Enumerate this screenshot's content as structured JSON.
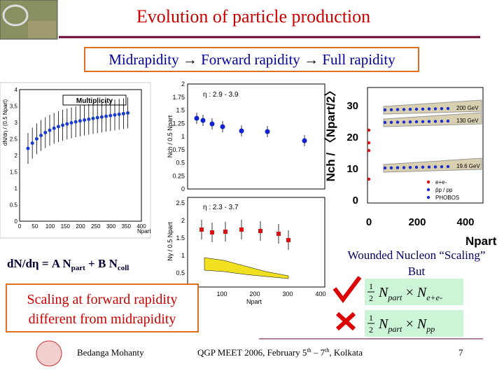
{
  "header": {
    "title": "Evolution of particle production",
    "subtitle": {
      "part1": "Midrapidity",
      "arrow1": "→",
      "part2": "Forward rapidity",
      "arrow2": "→",
      "part3": "Full rapidity"
    }
  },
  "figures": {
    "left_plot": {
      "title": "Multiplicity",
      "y_label": "dN/dη / (0.5 Npart)",
      "x_label": "Npart",
      "x_ticks": [
        "0",
        "50",
        "100",
        "150",
        "200",
        "250",
        "300",
        "350",
        "400"
      ],
      "y_ticks": [
        "0",
        "0.5",
        "1",
        "1.5",
        "2",
        "2.5",
        "3",
        "3.5",
        "4"
      ]
    },
    "middle_plot": {
      "top_label": "η : 2.9 - 3.9",
      "bottom_label": "η : 2.3 - 3.7",
      "top_y_label": "Nch / 0.5 Npart",
      "bottom_y_label": "Nγ / 0.5 Npart",
      "x_label": "Npart",
      "top_y_ticks": [
        "0",
        "0.25",
        "0.5",
        "0.75",
        "1",
        "1.25",
        "1.5",
        "1.75",
        "2"
      ],
      "bottom_y_ticks": [
        "0.5",
        "1",
        "1.5",
        "2",
        "2.5"
      ],
      "x_ticks": [
        "100",
        "200",
        "300",
        "400"
      ]
    },
    "right_plot": {
      "y_label": "Nch / 〈Npart/2〉",
      "x_label": "Npart",
      "y_ticks": [
        "0",
        "10",
        "20",
        "30"
      ],
      "x_ticks": [
        "0",
        "200",
        "400"
      ],
      "energy_labels": [
        "200 GeV",
        "130 GeV",
        "19.6 GeV"
      ],
      "legend": [
        "e+e-",
        "p̄p / pp",
        "PHOBOS"
      ]
    }
  },
  "formula": {
    "lhs": "dN/dη = A N",
    "sub1": "part",
    "mid": " + B N",
    "sub2": "coll"
  },
  "wounded": {
    "line1": "Wounded Nucleon “Scaling”",
    "line2": "But"
  },
  "scaling_box": {
    "line1": "Scaling at forward rapidity",
    "line2": "different from midrapidity"
  },
  "formula_boxes": [
    {
      "num": "1",
      "den": "2",
      "n": "N",
      "sub_a": "part",
      "times": "×",
      "n2": "N",
      "sub_b": "e+e-"
    },
    {
      "num": "1",
      "den": "2",
      "n": "N",
      "sub_a": "part",
      "times": "×",
      "n2": "N",
      "sub_b": "pp"
    }
  ],
  "footer": {
    "author": "Bedanga Mohanty",
    "event": {
      "a": "QGP MEET 2006, February 5",
      "sup1": "th",
      "b": " – 7",
      "sup2": "th",
      "c": ", Kolkata"
    },
    "page": "7"
  }
}
